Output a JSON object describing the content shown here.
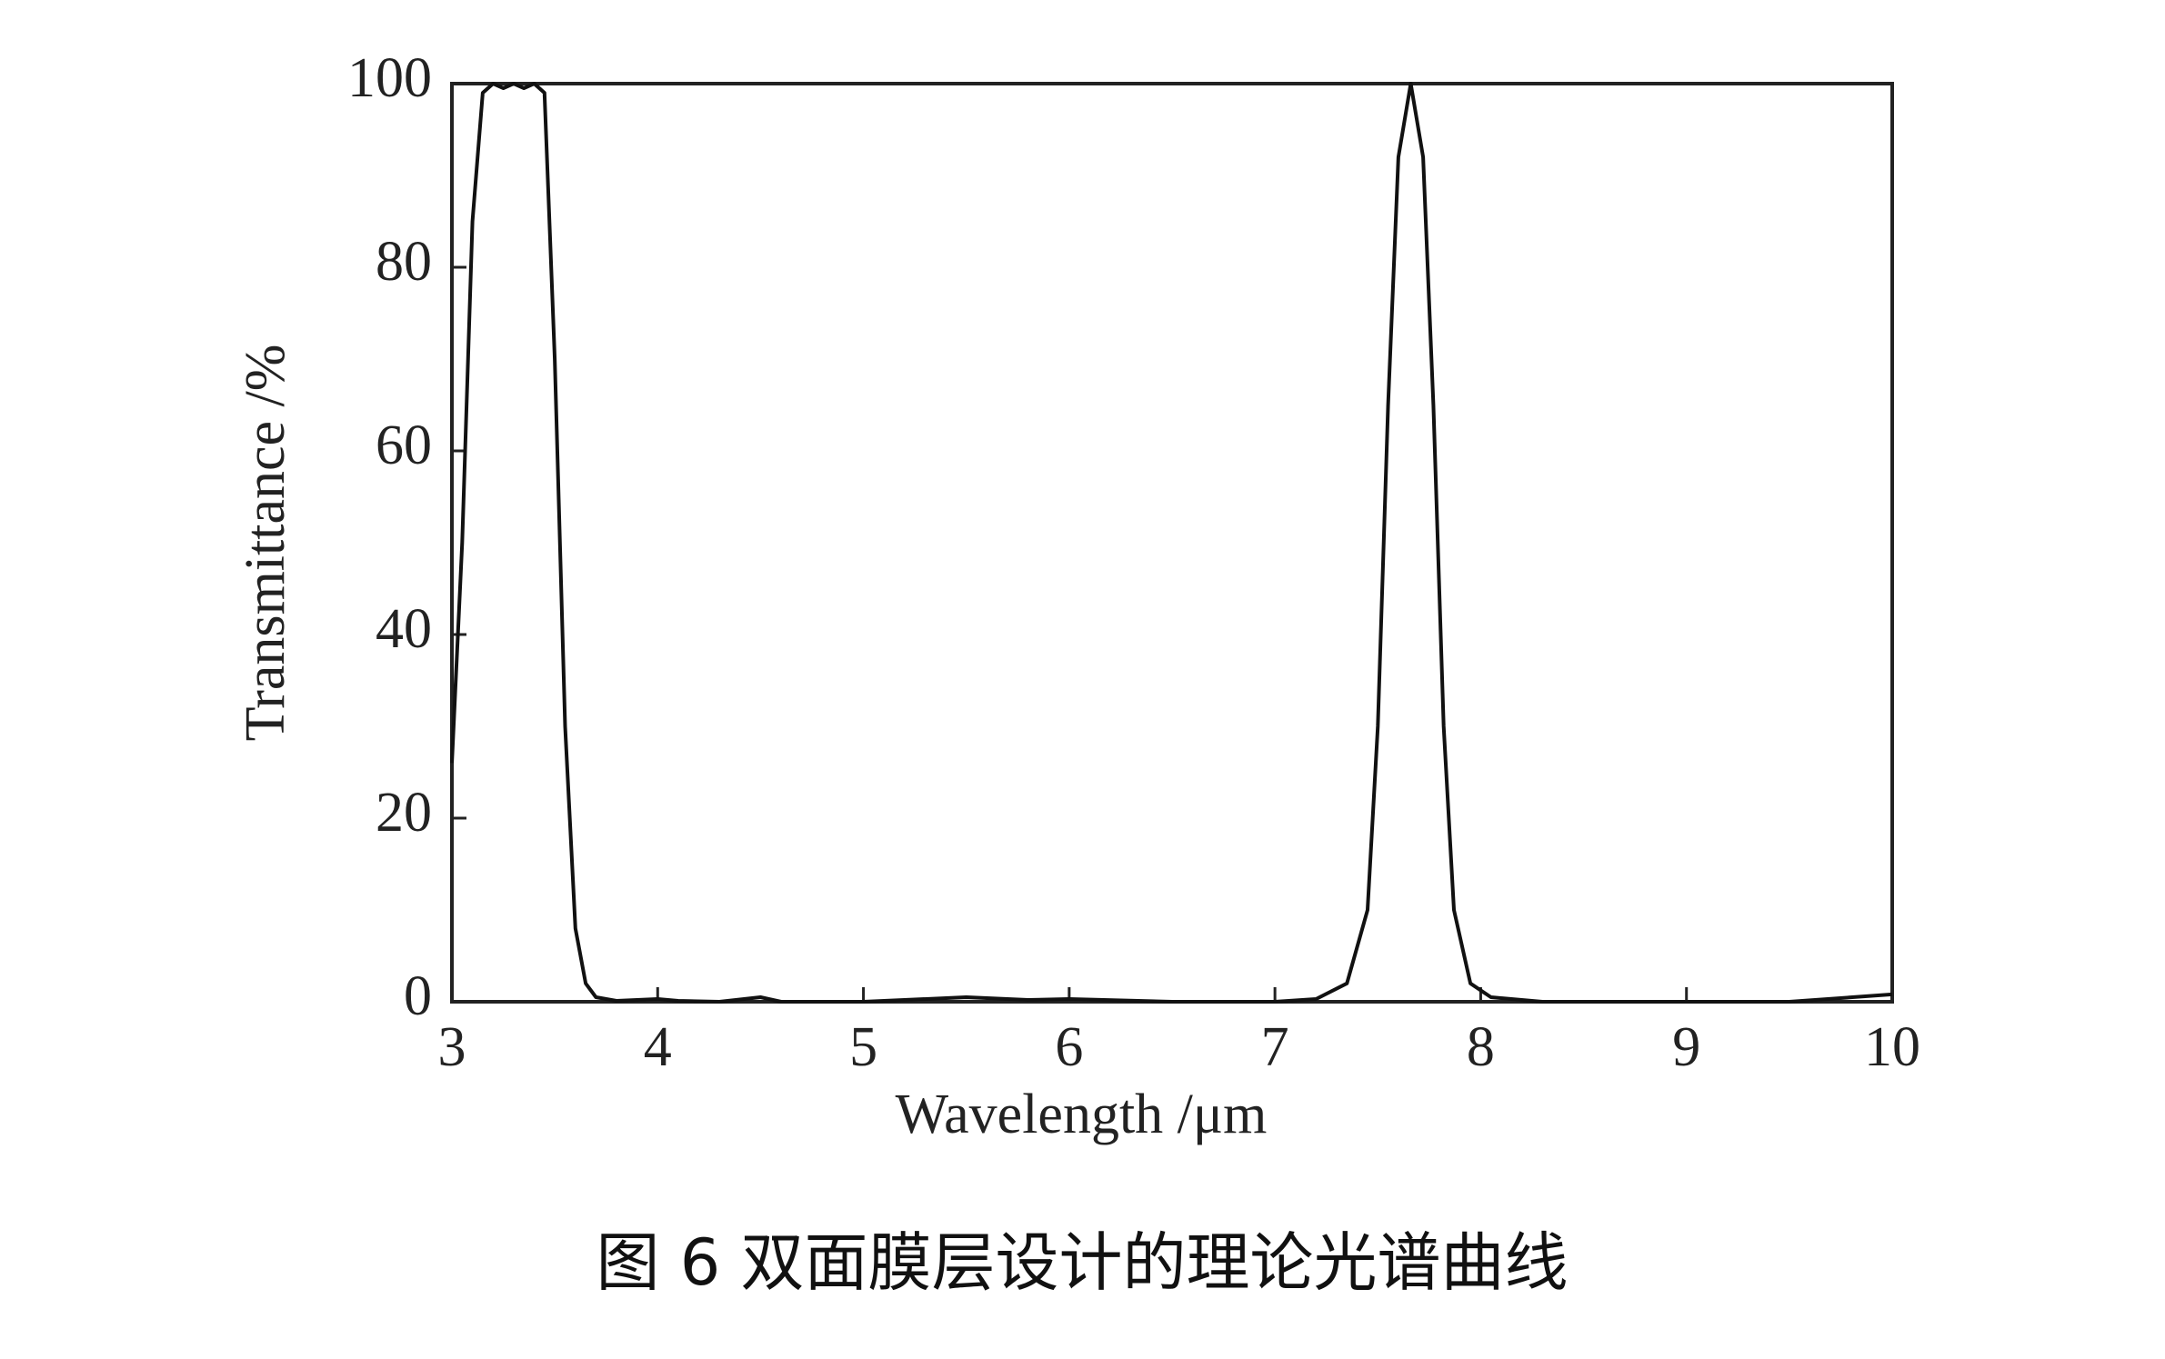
{
  "chart_data": {
    "type": "line",
    "x_label": "Wavelength /μm",
    "y_label": "Transmittance /%",
    "caption": "图 6  双面膜层设计的理论光谱曲线",
    "x": [
      3.0,
      3.05,
      3.1,
      3.15,
      3.2,
      3.25,
      3.3,
      3.35,
      3.4,
      3.45,
      3.5,
      3.55,
      3.6,
      3.65,
      3.7,
      3.8,
      4.0,
      4.1,
      4.3,
      4.5,
      4.6,
      5.0,
      5.5,
      5.8,
      6.0,
      6.5,
      7.0,
      7.2,
      7.35,
      7.45,
      7.5,
      7.55,
      7.6,
      7.66,
      7.72,
      7.77,
      7.82,
      7.87,
      7.95,
      8.05,
      8.3,
      9.0,
      9.5,
      10.0
    ],
    "series": [
      {
        "name": "Transmittance",
        "color": "#111111",
        "values": [
          26,
          50,
          85,
          99,
          100,
          99.5,
          100,
          99.5,
          100,
          99,
          70,
          30,
          8,
          2,
          0.5,
          0.1,
          0.3,
          0.1,
          0,
          0.5,
          0,
          0,
          0.5,
          0.2,
          0.3,
          0,
          0,
          0.3,
          2,
          10,
          30,
          65,
          92,
          100,
          92,
          65,
          30,
          10,
          2,
          0.5,
          0,
          0,
          0,
          0.8
        ]
      }
    ],
    "xlim": [
      3,
      10
    ],
    "xticks": [
      3,
      4,
      5,
      6,
      7,
      8,
      9,
      10
    ],
    "ylim": [
      0,
      100
    ],
    "yticks": [
      0,
      20,
      40,
      60,
      80,
      100
    ],
    "grid": false
  }
}
